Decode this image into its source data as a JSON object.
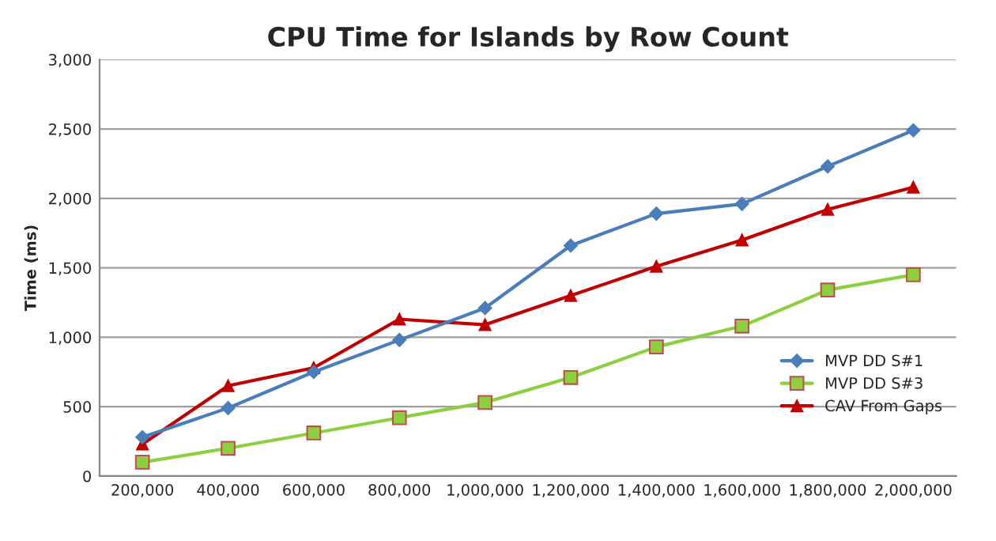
{
  "chart_data": {
    "type": "line",
    "title": "CPU Time for Islands by Row Count",
    "ylabel": "Time (ms)",
    "categories": [
      "200,000",
      "400,000",
      "600,000",
      "800,000",
      "1,000,000",
      "1,200,000",
      "1,400,000",
      "1,600,000",
      "1,800,000",
      "2,000,000"
    ],
    "series": [
      {
        "name": "MVP DD S#1",
        "color": "#4a7ebb",
        "marker": "diamond",
        "values": [
          280,
          490,
          750,
          980,
          1210,
          1660,
          1890,
          1960,
          2230,
          2490
        ]
      },
      {
        "name": "MVP DD S#3",
        "color": "#8ccf3f",
        "marker": "square",
        "values": [
          100,
          200,
          310,
          420,
          530,
          710,
          930,
          1080,
          1340,
          1450
        ]
      },
      {
        "name": "CAV From Gaps",
        "color": "#c00000",
        "marker": "triangle",
        "values": [
          230,
          650,
          780,
          1130,
          1090,
          1300,
          1510,
          1700,
          1920,
          2080
        ]
      }
    ],
    "ylim": [
      0,
      3000
    ],
    "yticks": [
      {
        "value": 0,
        "label": "0"
      },
      {
        "value": 500,
        "label": "500"
      },
      {
        "value": 1000,
        "label": "1,000"
      },
      {
        "value": 1500,
        "label": "1,500"
      },
      {
        "value": 2000,
        "label": "2,000"
      },
      {
        "value": 2500,
        "label": "2,500"
      },
      {
        "value": 3000,
        "label": "3,000"
      }
    ],
    "grid": "y",
    "legend": "right"
  }
}
